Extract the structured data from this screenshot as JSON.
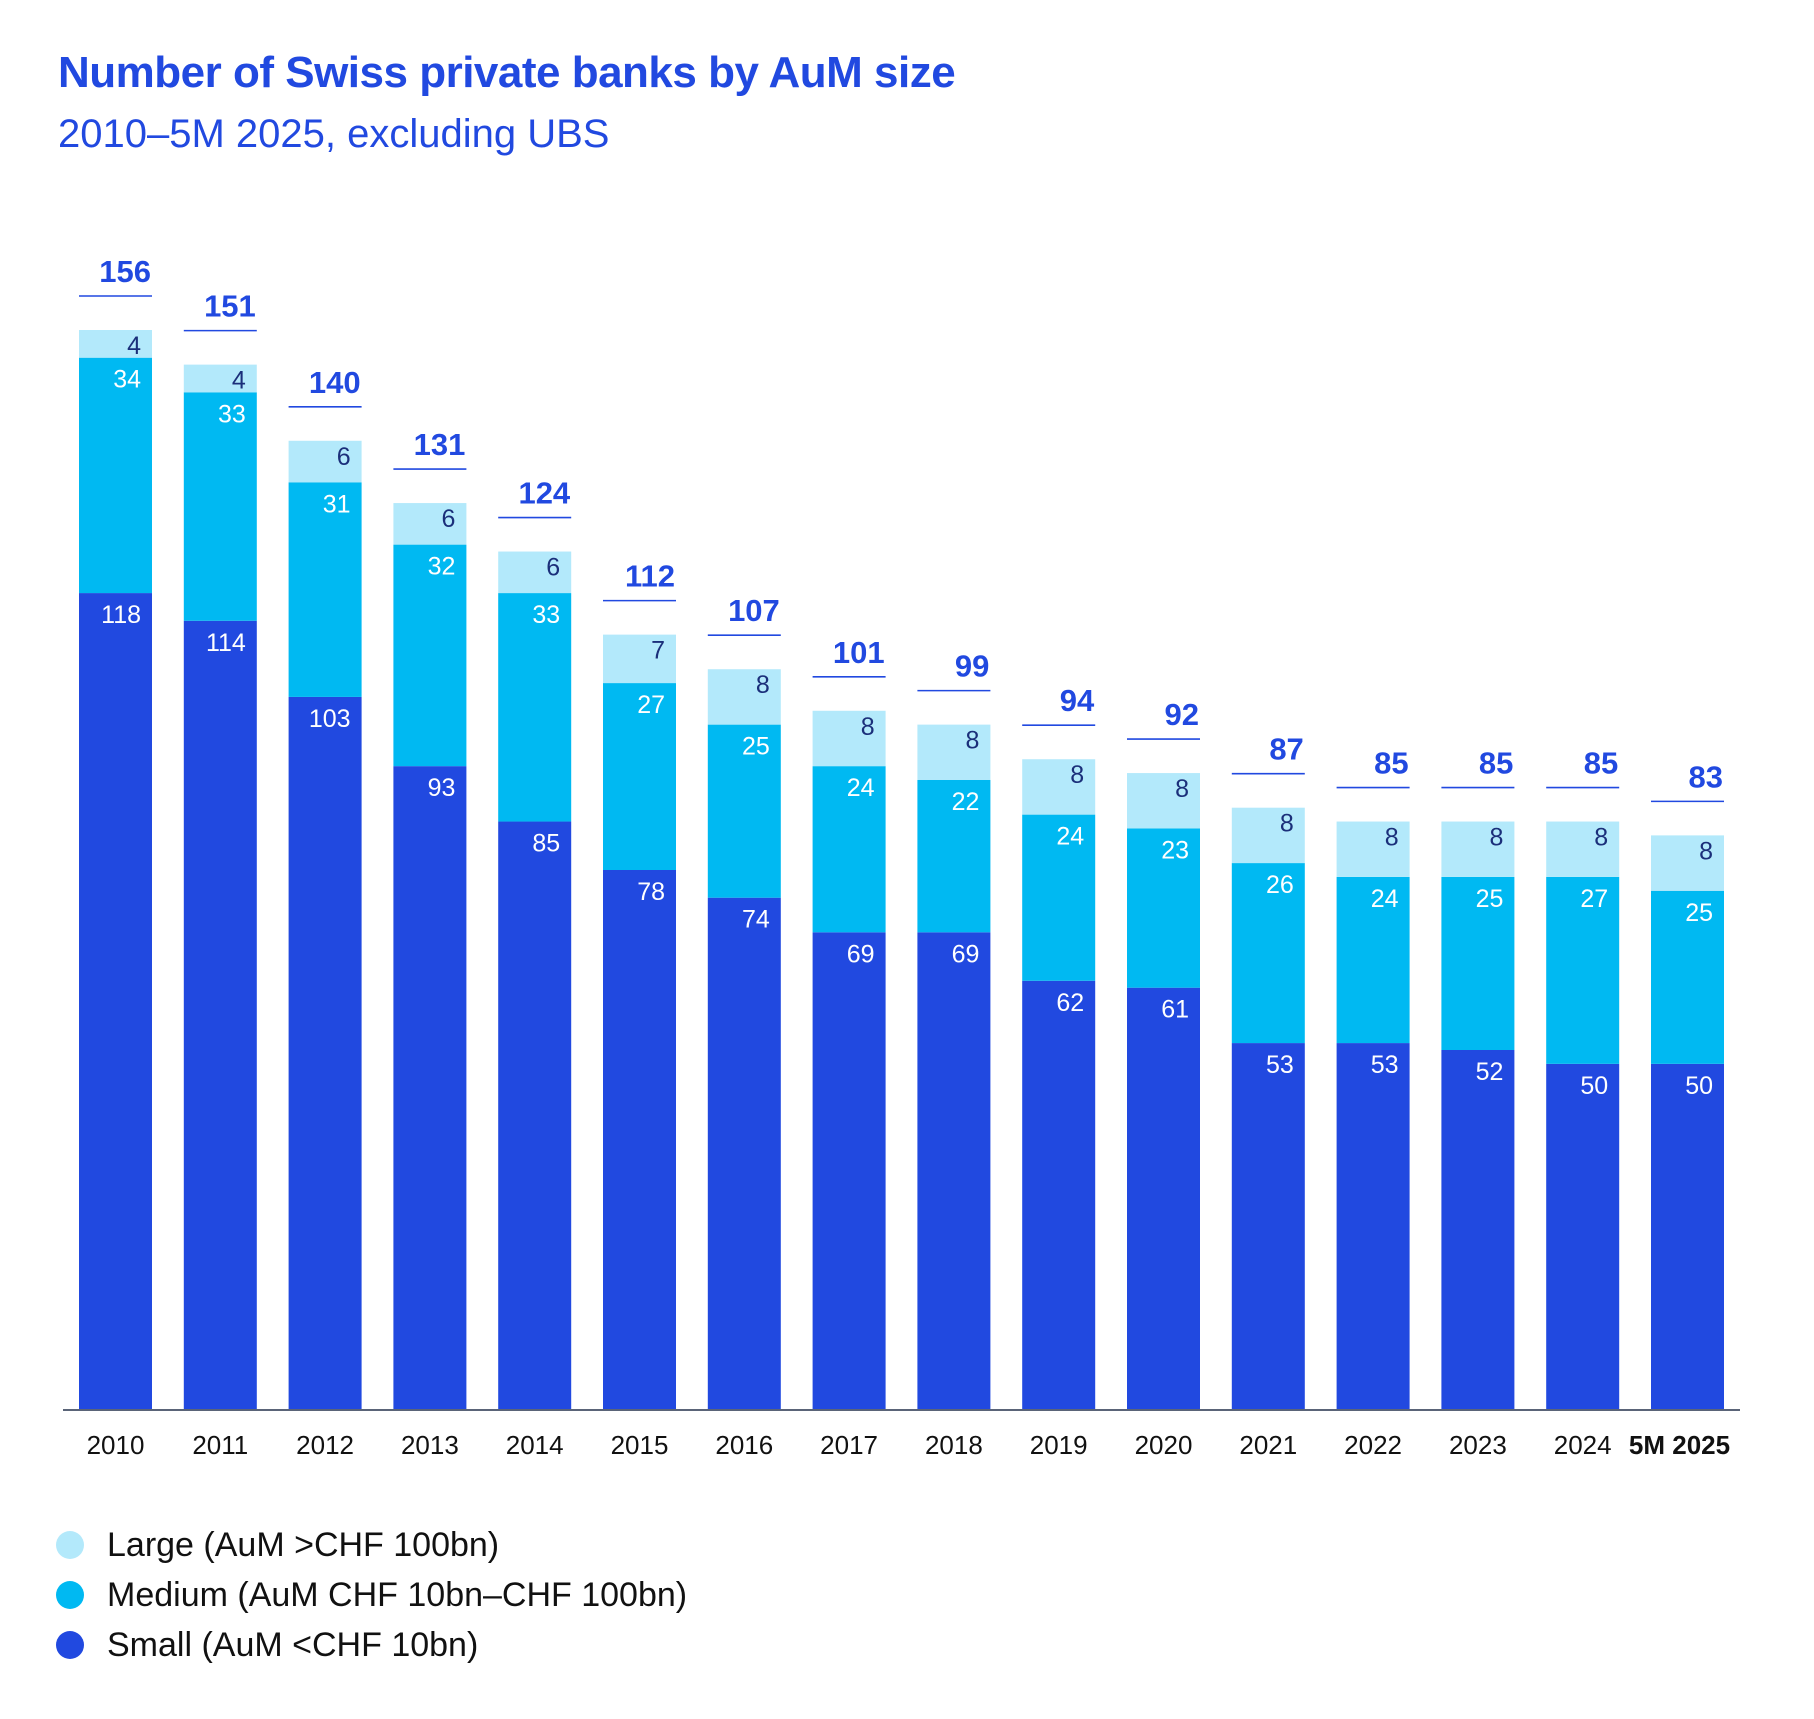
{
  "header": {
    "title": "Number of Swiss private banks by AuM size",
    "subtitle": "2010–5M 2025, excluding UBS"
  },
  "colors": {
    "large": "#b3e9fb",
    "medium": "#00b9f2",
    "small": "#2149e0",
    "title": "#2149e0",
    "total_label": "#2149e0",
    "large_label": "#1b2f7a",
    "segment_label": "#ffffff",
    "axis": "#5a6478",
    "tick_label": "#111111"
  },
  "legend": [
    {
      "key": "large",
      "label": "Large (AuM >CHF 100bn)"
    },
    {
      "key": "medium",
      "label": "Medium (AuM CHF 10bn–CHF 100bn)"
    },
    {
      "key": "small",
      "label": "Small (AuM <CHF 10bn)"
    }
  ],
  "chart_data": {
    "type": "bar",
    "stacked": true,
    "title": "Number of Swiss private banks by AuM size",
    "subtitle": "2010–5M 2025, excluding UBS",
    "xlabel": "",
    "ylabel": "",
    "ylim": [
      0,
      156
    ],
    "grid": false,
    "legend_position": "bottom-left",
    "categories": [
      "2010",
      "2011",
      "2012",
      "2013",
      "2014",
      "2015",
      "2016",
      "2017",
      "2018",
      "2019",
      "2020",
      "2021",
      "2022",
      "2023",
      "2024",
      "5M 2025"
    ],
    "highlight_category": "5M 2025",
    "series": [
      {
        "name": "Small (AuM <CHF 10bn)",
        "key": "small",
        "values": [
          118,
          114,
          103,
          93,
          85,
          78,
          74,
          69,
          69,
          62,
          61,
          53,
          53,
          52,
          50,
          50
        ]
      },
      {
        "name": "Medium (AuM CHF 10bn–CHF 100bn)",
        "key": "medium",
        "values": [
          34,
          33,
          31,
          32,
          33,
          27,
          25,
          24,
          22,
          24,
          23,
          26,
          24,
          25,
          27,
          25
        ]
      },
      {
        "name": "Large (AuM >CHF 100bn)",
        "key": "large",
        "values": [
          4,
          4,
          6,
          6,
          6,
          7,
          8,
          8,
          8,
          8,
          8,
          8,
          8,
          8,
          8,
          8
        ]
      }
    ],
    "totals": [
      156,
      151,
      140,
      131,
      124,
      112,
      107,
      101,
      99,
      94,
      92,
      87,
      85,
      85,
      85,
      83
    ]
  }
}
